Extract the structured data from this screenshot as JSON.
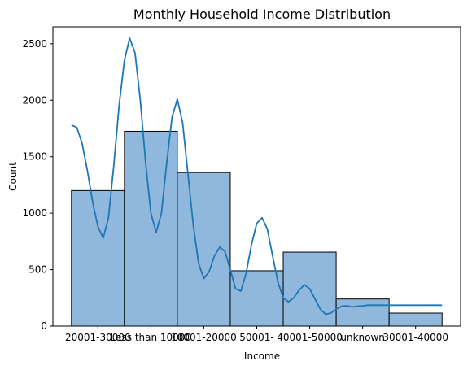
{
  "chart_data": {
    "type": "bar",
    "title": "Monthly Household Income Distribution",
    "xlabel": "Income",
    "ylabel": "Count",
    "categories": [
      "20001-30000",
      "Less than 10000",
      "10001-20000",
      "50001-",
      "40001-50000",
      "unknown",
      "30001-40000"
    ],
    "values": [
      1200,
      1725,
      1360,
      490,
      655,
      240,
      115
    ],
    "ylim": [
      0,
      2650
    ],
    "yticks": [
      0,
      500,
      1000,
      1500,
      2000,
      2500
    ],
    "kde": {
      "x": [
        -0.5,
        -0.4,
        -0.3,
        -0.2,
        -0.1,
        0.0,
        0.1,
        0.2,
        0.3,
        0.4,
        0.5,
        0.6,
        0.7,
        0.8,
        0.9,
        1.0,
        1.1,
        1.2,
        1.3,
        1.4,
        1.5,
        1.6,
        1.7,
        1.8,
        1.9,
        2.0,
        2.1,
        2.2,
        2.3,
        2.4,
        2.5,
        2.6,
        2.7,
        2.8,
        2.9,
        3.0,
        3.1,
        3.2,
        3.3,
        3.4,
        3.5,
        3.6,
        3.7,
        3.8,
        3.9,
        4.0,
        4.1,
        4.2,
        4.3,
        4.4,
        4.5,
        4.6,
        4.7,
        4.8,
        4.9,
        5.0,
        5.1,
        5.2,
        5.3,
        5.4,
        5.5,
        5.6,
        5.7,
        5.8,
        5.9,
        6.0,
        6.1,
        6.2,
        6.3,
        6.4,
        6.5
      ],
      "y": [
        1780,
        1760,
        1620,
        1380,
        1100,
        880,
        780,
        960,
        1420,
        1950,
        2350,
        2550,
        2420,
        2000,
        1450,
        1000,
        830,
        1000,
        1450,
        1850,
        2010,
        1800,
        1350,
        900,
        560,
        420,
        480,
        620,
        700,
        660,
        500,
        330,
        310,
        470,
        720,
        910,
        960,
        860,
        620,
        390,
        250,
        215,
        250,
        320,
        365,
        330,
        240,
        150,
        105,
        115,
        150,
        175,
        180,
        170,
        175,
        180,
        185,
        185,
        185,
        185,
        185,
        185,
        185,
        185,
        185,
        185,
        185,
        185,
        185,
        185,
        185
      ]
    },
    "colors": {
      "bar_fill": "#8fb8dc",
      "bar_edge": "#000000",
      "line": "#1f77b4"
    },
    "grid": false,
    "legend": "none"
  }
}
